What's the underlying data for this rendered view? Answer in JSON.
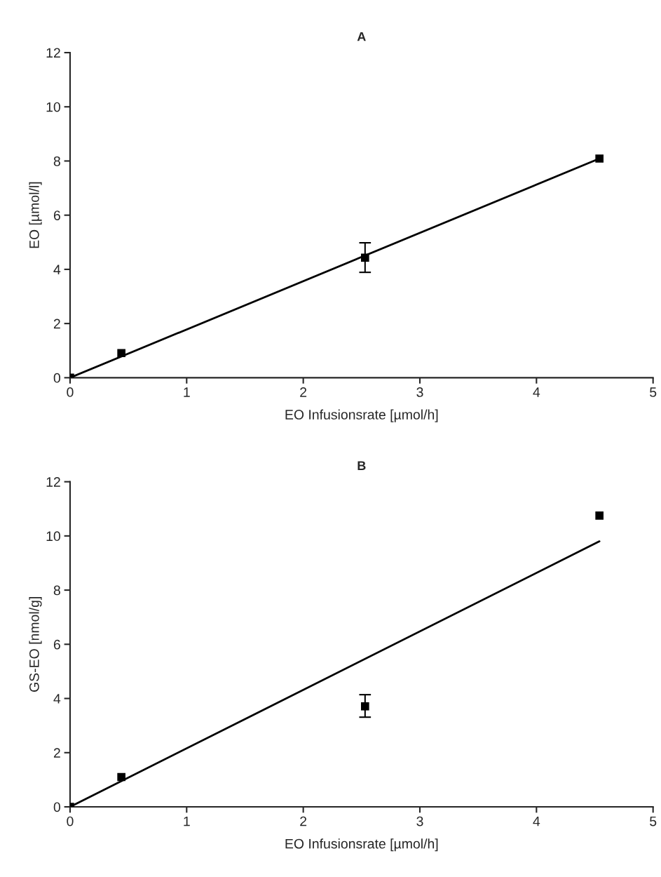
{
  "chart_data": [
    {
      "type": "scatter",
      "title": "A",
      "xlabel": "EO Infusionsrate [µmol/h]",
      "ylabel": "EO [µmol/l]",
      "xlim": [
        0,
        5
      ],
      "xticks": [
        0,
        1,
        2,
        3,
        4,
        5
      ],
      "ylim": [
        0,
        12
      ],
      "yticks": [
        0,
        2,
        4,
        6,
        8,
        10,
        12
      ],
      "grid": false,
      "legend": false,
      "marker": "square",
      "series": [
        {
          "type": "scatter",
          "color": "#000000",
          "x": [
            0,
            0.44,
            2.53,
            4.54
          ],
          "values": [
            0,
            0.91,
            4.43,
            8.09
          ],
          "errors": [
            null,
            null,
            [
              3.89,
              4.98
            ],
            null
          ]
        },
        {
          "type": "line",
          "color": "#000000",
          "x": [
            0,
            4.54
          ],
          "values": [
            0,
            8.09
          ],
          "line_style": "solid",
          "marker": "none"
        }
      ]
    },
    {
      "type": "scatter",
      "title": "B",
      "xlabel": "EO Infusionsrate [µmol/h]",
      "ylabel": "GS-EO [nmol/g]",
      "xlim": [
        0,
        5
      ],
      "xticks": [
        0,
        1,
        2,
        3,
        4,
        5
      ],
      "ylim": [
        0,
        12
      ],
      "yticks": [
        0,
        2,
        4,
        6,
        8,
        10,
        12
      ],
      "grid": false,
      "legend": false,
      "marker": "square",
      "series": [
        {
          "type": "scatter",
          "color": "#000000",
          "x": [
            0,
            0.44,
            2.53,
            4.54
          ],
          "values": [
            0,
            1.1,
            3.71,
            10.75
          ],
          "errors": [
            null,
            null,
            [
              3.31,
              4.14
            ],
            null
          ]
        },
        {
          "type": "line",
          "color": "#000000",
          "x": [
            0,
            4.54
          ],
          "values": [
            0,
            9.8
          ],
          "line_style": "solid",
          "marker": "none"
        }
      ]
    }
  ]
}
